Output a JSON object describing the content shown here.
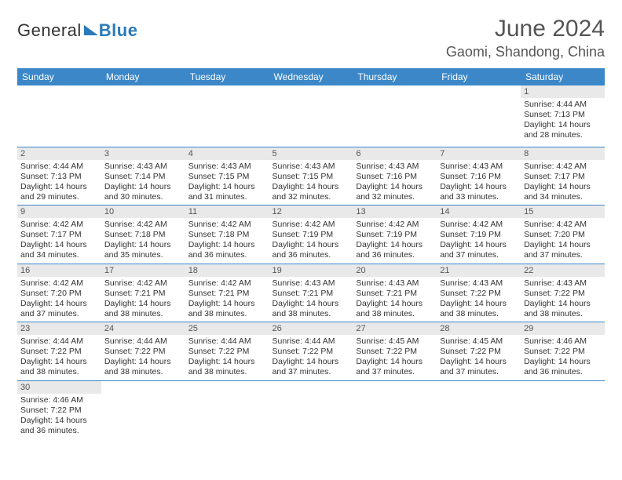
{
  "logo": {
    "word1": "General",
    "word2": "Blue"
  },
  "title": "June 2024",
  "location": "Gaomi, Shandong, China",
  "colors": {
    "header_bg": "#3b87c8",
    "header_text": "#ffffff",
    "daynum_bg": "#e9e9e9",
    "body_text": "#333333",
    "title_text": "#555555",
    "cell_border": "#3b87c8",
    "logo_accent": "#2a7ab9"
  },
  "weekdays": [
    "Sunday",
    "Monday",
    "Tuesday",
    "Wednesday",
    "Thursday",
    "Friday",
    "Saturday"
  ],
  "weeks": [
    [
      {
        "n": "",
        "sr": "",
        "ss": "",
        "dl": ""
      },
      {
        "n": "",
        "sr": "",
        "ss": "",
        "dl": ""
      },
      {
        "n": "",
        "sr": "",
        "ss": "",
        "dl": ""
      },
      {
        "n": "",
        "sr": "",
        "ss": "",
        "dl": ""
      },
      {
        "n": "",
        "sr": "",
        "ss": "",
        "dl": ""
      },
      {
        "n": "",
        "sr": "",
        "ss": "",
        "dl": ""
      },
      {
        "n": "1",
        "sr": "Sunrise: 4:44 AM",
        "ss": "Sunset: 7:13 PM",
        "dl": "Daylight: 14 hours and 28 minutes."
      }
    ],
    [
      {
        "n": "2",
        "sr": "Sunrise: 4:44 AM",
        "ss": "Sunset: 7:13 PM",
        "dl": "Daylight: 14 hours and 29 minutes."
      },
      {
        "n": "3",
        "sr": "Sunrise: 4:43 AM",
        "ss": "Sunset: 7:14 PM",
        "dl": "Daylight: 14 hours and 30 minutes."
      },
      {
        "n": "4",
        "sr": "Sunrise: 4:43 AM",
        "ss": "Sunset: 7:15 PM",
        "dl": "Daylight: 14 hours and 31 minutes."
      },
      {
        "n": "5",
        "sr": "Sunrise: 4:43 AM",
        "ss": "Sunset: 7:15 PM",
        "dl": "Daylight: 14 hours and 32 minutes."
      },
      {
        "n": "6",
        "sr": "Sunrise: 4:43 AM",
        "ss": "Sunset: 7:16 PM",
        "dl": "Daylight: 14 hours and 32 minutes."
      },
      {
        "n": "7",
        "sr": "Sunrise: 4:43 AM",
        "ss": "Sunset: 7:16 PM",
        "dl": "Daylight: 14 hours and 33 minutes."
      },
      {
        "n": "8",
        "sr": "Sunrise: 4:42 AM",
        "ss": "Sunset: 7:17 PM",
        "dl": "Daylight: 14 hours and 34 minutes."
      }
    ],
    [
      {
        "n": "9",
        "sr": "Sunrise: 4:42 AM",
        "ss": "Sunset: 7:17 PM",
        "dl": "Daylight: 14 hours and 34 minutes."
      },
      {
        "n": "10",
        "sr": "Sunrise: 4:42 AM",
        "ss": "Sunset: 7:18 PM",
        "dl": "Daylight: 14 hours and 35 minutes."
      },
      {
        "n": "11",
        "sr": "Sunrise: 4:42 AM",
        "ss": "Sunset: 7:18 PM",
        "dl": "Daylight: 14 hours and 36 minutes."
      },
      {
        "n": "12",
        "sr": "Sunrise: 4:42 AM",
        "ss": "Sunset: 7:19 PM",
        "dl": "Daylight: 14 hours and 36 minutes."
      },
      {
        "n": "13",
        "sr": "Sunrise: 4:42 AM",
        "ss": "Sunset: 7:19 PM",
        "dl": "Daylight: 14 hours and 36 minutes."
      },
      {
        "n": "14",
        "sr": "Sunrise: 4:42 AM",
        "ss": "Sunset: 7:19 PM",
        "dl": "Daylight: 14 hours and 37 minutes."
      },
      {
        "n": "15",
        "sr": "Sunrise: 4:42 AM",
        "ss": "Sunset: 7:20 PM",
        "dl": "Daylight: 14 hours and 37 minutes."
      }
    ],
    [
      {
        "n": "16",
        "sr": "Sunrise: 4:42 AM",
        "ss": "Sunset: 7:20 PM",
        "dl": "Daylight: 14 hours and 37 minutes."
      },
      {
        "n": "17",
        "sr": "Sunrise: 4:42 AM",
        "ss": "Sunset: 7:21 PM",
        "dl": "Daylight: 14 hours and 38 minutes."
      },
      {
        "n": "18",
        "sr": "Sunrise: 4:42 AM",
        "ss": "Sunset: 7:21 PM",
        "dl": "Daylight: 14 hours and 38 minutes."
      },
      {
        "n": "19",
        "sr": "Sunrise: 4:43 AM",
        "ss": "Sunset: 7:21 PM",
        "dl": "Daylight: 14 hours and 38 minutes."
      },
      {
        "n": "20",
        "sr": "Sunrise: 4:43 AM",
        "ss": "Sunset: 7:21 PM",
        "dl": "Daylight: 14 hours and 38 minutes."
      },
      {
        "n": "21",
        "sr": "Sunrise: 4:43 AM",
        "ss": "Sunset: 7:22 PM",
        "dl": "Daylight: 14 hours and 38 minutes."
      },
      {
        "n": "22",
        "sr": "Sunrise: 4:43 AM",
        "ss": "Sunset: 7:22 PM",
        "dl": "Daylight: 14 hours and 38 minutes."
      }
    ],
    [
      {
        "n": "23",
        "sr": "Sunrise: 4:44 AM",
        "ss": "Sunset: 7:22 PM",
        "dl": "Daylight: 14 hours and 38 minutes."
      },
      {
        "n": "24",
        "sr": "Sunrise: 4:44 AM",
        "ss": "Sunset: 7:22 PM",
        "dl": "Daylight: 14 hours and 38 minutes."
      },
      {
        "n": "25",
        "sr": "Sunrise: 4:44 AM",
        "ss": "Sunset: 7:22 PM",
        "dl": "Daylight: 14 hours and 38 minutes."
      },
      {
        "n": "26",
        "sr": "Sunrise: 4:44 AM",
        "ss": "Sunset: 7:22 PM",
        "dl": "Daylight: 14 hours and 37 minutes."
      },
      {
        "n": "27",
        "sr": "Sunrise: 4:45 AM",
        "ss": "Sunset: 7:22 PM",
        "dl": "Daylight: 14 hours and 37 minutes."
      },
      {
        "n": "28",
        "sr": "Sunrise: 4:45 AM",
        "ss": "Sunset: 7:22 PM",
        "dl": "Daylight: 14 hours and 37 minutes."
      },
      {
        "n": "29",
        "sr": "Sunrise: 4:46 AM",
        "ss": "Sunset: 7:22 PM",
        "dl": "Daylight: 14 hours and 36 minutes."
      }
    ],
    [
      {
        "n": "30",
        "sr": "Sunrise: 4:46 AM",
        "ss": "Sunset: 7:22 PM",
        "dl": "Daylight: 14 hours and 36 minutes."
      },
      {
        "n": "",
        "sr": "",
        "ss": "",
        "dl": ""
      },
      {
        "n": "",
        "sr": "",
        "ss": "",
        "dl": ""
      },
      {
        "n": "",
        "sr": "",
        "ss": "",
        "dl": ""
      },
      {
        "n": "",
        "sr": "",
        "ss": "",
        "dl": ""
      },
      {
        "n": "",
        "sr": "",
        "ss": "",
        "dl": ""
      },
      {
        "n": "",
        "sr": "",
        "ss": "",
        "dl": ""
      }
    ]
  ]
}
